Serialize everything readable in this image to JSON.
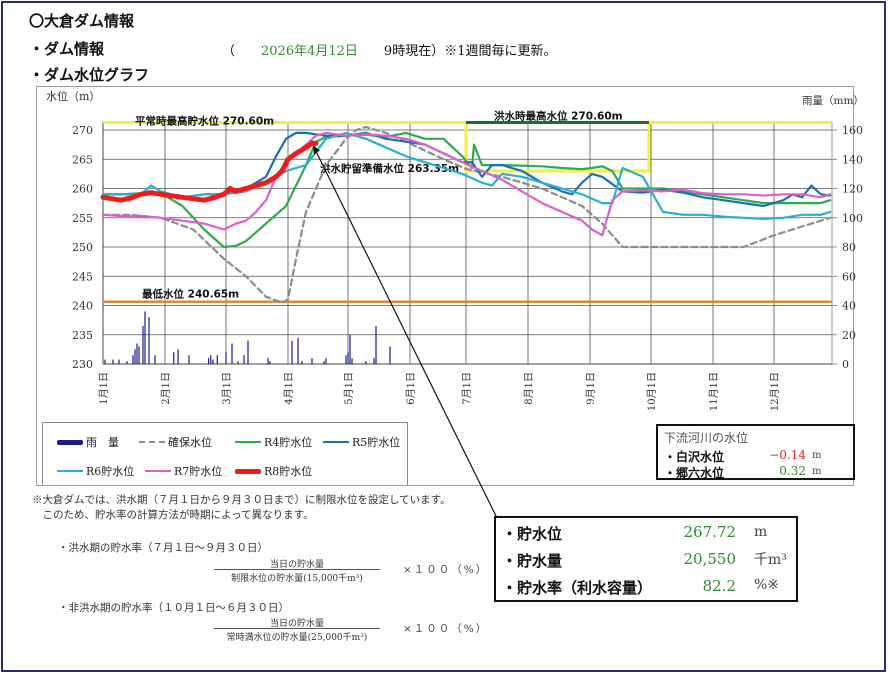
{
  "header": {
    "title": "〇大倉ダム情報",
    "dam_info_label": "・ダム情報",
    "date_prefix": "（　　",
    "date": "2026年4月12日",
    "date_suffix": "　　9時現在）※1週間毎に更新。",
    "graph_label": "・ダム水位グラフ"
  },
  "chart_data": {
    "type": "line",
    "title": "ダム水位グラフ",
    "ylabel": "水位（m）",
    "y2label": "雨量（mm）",
    "ylim": [
      230,
      270
    ],
    "y2lim": [
      0,
      160
    ],
    "yticks": [
      230,
      235,
      240,
      245,
      250,
      255,
      260,
      265,
      270
    ],
    "y2ticks": [
      0,
      20,
      40,
      60,
      80,
      100,
      120,
      140,
      160
    ],
    "xticks": [
      "1月1日",
      "2月1日",
      "3月1日",
      "4月1日",
      "5月1日",
      "6月1日",
      "7月1日",
      "8月1日",
      "9月1日",
      "10月1日",
      "11月1日",
      "12月1日"
    ],
    "x_unit": "day_of_year",
    "grid": true,
    "reference_lines": [
      {
        "name": "平常時最高貯水位",
        "label": "平常時最高貯水位 270.60m",
        "value": 270.6,
        "color": "#f2f23c"
      },
      {
        "name": "洪水時最高水位",
        "label": "洪水時最高水位 270.60m",
        "value": 270.6,
        "from_day": 182,
        "to_day": 273,
        "color": "#1f6e2a"
      },
      {
        "name": "洪水貯留準備水位",
        "label": "洪水貯留準備水位 263.35m",
        "value": 263.35,
        "from_day": 182,
        "to_day": 273,
        "color": "#f2f23c"
      },
      {
        "name": "最低水位",
        "label": "最低水位 240.65m",
        "value": 240.65,
        "color": "#d98a3a"
      }
    ],
    "series": [
      {
        "name": "確保水位",
        "color": "#8c8c8c",
        "dash": true,
        "x": [
          1,
          15,
          30,
          45,
          59,
          70,
          80,
          88,
          91,
          95,
          100,
          110,
          120,
          125,
          130,
          140,
          150,
          160,
          170,
          182,
          200,
          220,
          240,
          250,
          260,
          273,
          290,
          310,
          320,
          335,
          350,
          365
        ],
        "y": [
          255.5,
          255.5,
          255,
          253,
          248,
          245,
          241.5,
          240.5,
          241,
          248,
          256,
          264,
          268.5,
          270,
          270.5,
          269.5,
          268,
          266.5,
          265,
          263.35,
          262,
          260,
          257,
          254,
          250,
          250,
          250,
          250,
          250,
          252,
          253.5,
          255
        ]
      },
      {
        "name": "R4貯水位",
        "color": "#2eaa4e",
        "x": [
          1,
          10,
          20,
          30,
          40,
          50,
          59,
          65,
          70,
          80,
          90,
          100,
          105,
          110,
          120,
          130,
          140,
          150,
          160,
          170,
          180,
          185,
          186,
          190,
          200,
          220,
          230,
          240,
          245,
          250,
          255,
          260,
          270,
          280,
          300,
          310,
          320,
          330,
          340,
          350,
          360,
          365
        ],
        "y": [
          259,
          259,
          259.2,
          259.2,
          257,
          253,
          250,
          250.2,
          251,
          254,
          257,
          264,
          268,
          268.8,
          269,
          269.2,
          268.8,
          269.5,
          268.5,
          268.5,
          265.5,
          263.5,
          267.5,
          264,
          264,
          263.8,
          263.5,
          263.3,
          263.5,
          263.8,
          263,
          260,
          260,
          260,
          259,
          258.5,
          258,
          257.5,
          257.5,
          257.5,
          257.5,
          258
        ]
      },
      {
        "name": "R5貯水位",
        "color": "#1e6eb4",
        "x": [
          1,
          10,
          20,
          30,
          40,
          50,
          59,
          70,
          80,
          85,
          90,
          95,
          100,
          110,
          120,
          130,
          140,
          150,
          160,
          170,
          180,
          185,
          190,
          195,
          200,
          210,
          220,
          230,
          235,
          240,
          245,
          250,
          260,
          270,
          280,
          290,
          300,
          310,
          320,
          330,
          340,
          345,
          350,
          355,
          360,
          365
        ],
        "y": [
          259,
          259,
          259,
          259,
          258.5,
          259,
          259,
          260,
          262,
          265.5,
          268.5,
          269.5,
          269.5,
          269,
          269,
          269.5,
          268.5,
          268,
          267.5,
          266,
          264.5,
          264.5,
          262,
          264,
          264,
          263,
          261,
          259.5,
          259,
          261,
          262.5,
          262,
          259.5,
          259.3,
          259.8,
          259.3,
          258.5,
          258,
          257.5,
          257,
          258,
          259,
          258.5,
          260.5,
          259,
          258.8
        ]
      },
      {
        "name": "R6貯水位",
        "color": "#2aaed8",
        "x": [
          1,
          10,
          20,
          25,
          30,
          40,
          50,
          59,
          70,
          80,
          90,
          100,
          110,
          120,
          130,
          140,
          150,
          160,
          170,
          180,
          190,
          195,
          200,
          210,
          220,
          230,
          240,
          250,
          255,
          260,
          270,
          280,
          290,
          300,
          310,
          320,
          330,
          340,
          350,
          360,
          365
        ],
        "y": [
          259,
          259,
          259,
          260.5,
          259.5,
          258.5,
          259,
          259,
          259.5,
          261,
          263,
          264,
          268.5,
          269.5,
          268.5,
          267,
          265.5,
          264.5,
          263.5,
          262.5,
          261,
          260.5,
          262.5,
          262,
          261,
          260,
          259,
          257.5,
          257.5,
          263.5,
          262,
          256,
          255.5,
          255.5,
          255.2,
          255,
          254.8,
          255,
          255.5,
          255.5,
          256
        ]
      },
      {
        "name": "R7貯水位",
        "color": "#dd5fcd",
        "x": [
          1,
          10,
          20,
          30,
          40,
          50,
          59,
          65,
          70,
          75,
          80,
          85,
          90,
          95,
          100,
          105,
          110,
          120,
          130,
          140,
          150,
          160,
          170,
          180,
          190,
          200,
          210,
          220,
          230,
          240,
          245,
          250,
          255,
          260,
          270,
          280,
          290,
          300,
          310,
          320,
          330,
          340,
          350,
          360,
          365
        ],
        "y": [
          255.5,
          255.3,
          255.3,
          255,
          254.5,
          254,
          253,
          254,
          254.5,
          256,
          258,
          262,
          264.5,
          266,
          267.5,
          269,
          269.5,
          269,
          269.3,
          269,
          268.5,
          267.5,
          266,
          264.5,
          263,
          261.5,
          259.5,
          257.5,
          256,
          254.5,
          253,
          252,
          258,
          259.5,
          259.7,
          259.5,
          259.8,
          259.2,
          259,
          259,
          258.8,
          259,
          259,
          258.5,
          259
        ]
      },
      {
        "name": "R8貯水位",
        "color": "#ee1c1c",
        "width": 5,
        "x": [
          1,
          10,
          15,
          20,
          25,
          30,
          40,
          50,
          55,
          59,
          62,
          65,
          70,
          75,
          80,
          85,
          88,
          91,
          95,
          100,
          103,
          105
        ],
        "y": [
          258.5,
          258,
          258.4,
          259,
          259.3,
          259,
          258.5,
          258,
          258.5,
          259,
          260,
          259.5,
          260,
          260.5,
          261,
          262,
          263,
          265,
          266,
          267,
          267.72,
          267.72
        ]
      }
    ],
    "rainfall": {
      "name": "雨量",
      "color": "#1a1a8c",
      "days": [
        2,
        6,
        9,
        13,
        16,
        17,
        18,
        19,
        21,
        22,
        24,
        27,
        36,
        38,
        43,
        52,
        53,
        54,
        56,
        60,
        63,
        66,
        69,
        71,
        81,
        82,
        93,
        96,
        98,
        103,
        109,
        110,
        120,
        121,
        122,
        123,
        130,
        134,
        135,
        142
      ],
      "values": [
        3,
        3,
        3,
        2,
        6,
        10,
        14,
        12,
        26,
        36,
        32,
        6,
        8,
        10,
        6,
        4,
        6,
        3,
        6,
        8,
        14,
        2,
        6,
        16,
        4,
        2,
        16,
        18,
        2,
        4,
        2,
        4,
        6,
        8,
        20,
        4,
        2,
        4,
        26,
        12
      ]
    },
    "legend": [
      "雨　量",
      "確保水位",
      "R4貯水位",
      "R5貯水位",
      "R6貯水位",
      "R7貯水位",
      "R8貯水位"
    ],
    "annotation": {
      "label": "洪水貯留準備水位 263.35m",
      "arrow_from": "stats_box",
      "arrow_to_day": 103,
      "arrow_to_value": 267.72
    }
  },
  "legend": {
    "items": [
      {
        "label": "雨　量",
        "color": "#1a1a8c",
        "style": "thick"
      },
      {
        "label": "確保水位",
        "color": "#8c8c8c",
        "style": "dashed"
      },
      {
        "label": "R4貯水位",
        "color": "#2eaa4e",
        "style": "solid"
      },
      {
        "label": "R5貯水位",
        "color": "#1e6eb4",
        "style": "solid"
      },
      {
        "label": "R6貯水位",
        "color": "#2aaed8",
        "style": "solid"
      },
      {
        "label": "R7貯水位",
        "color": "#dd5fcd",
        "style": "solid"
      },
      {
        "label": "R8貯水位",
        "color": "#ee1c1c",
        "style": "thick"
      }
    ]
  },
  "downstream": {
    "title": "下流河川の水位",
    "rows": [
      {
        "label": "・白沢水位",
        "value": "−0.14",
        "unit": "m",
        "color": "#e0202a"
      },
      {
        "label": "・郷六水位",
        "value": "0.32",
        "unit": "m",
        "color": "#2e8b2e"
      }
    ]
  },
  "notes": {
    "line1": "※大倉ダムでは、洪水期（７月１日から９月３０日まで）に制限水位を設定しています。",
    "line2": "　このため、貯水率の計算方法が時期によって異なります。",
    "flood_title": "・洪水期の貯水率（７月１日～９月３０日）",
    "flood_numerator": "当日の貯水量",
    "flood_denominator": "制限水位の貯水量(15,000千m³)",
    "nonflood_title": "・非洪水期の貯水率（１０月１日～６月３０日）",
    "nonflood_numerator": "当日の貯水量",
    "nonflood_denominator": "常時満水位の貯水量(25,000千m³)",
    "multiplier": "×１００（%）"
  },
  "stats": {
    "rows": [
      {
        "label": "・貯水位",
        "value": "267.72",
        "unit": "m"
      },
      {
        "label": "・貯水量",
        "value": "20,550",
        "unit": "千m³"
      },
      {
        "label": "・貯水率（利水容量）",
        "value": "82.2",
        "unit": "%※"
      }
    ]
  }
}
